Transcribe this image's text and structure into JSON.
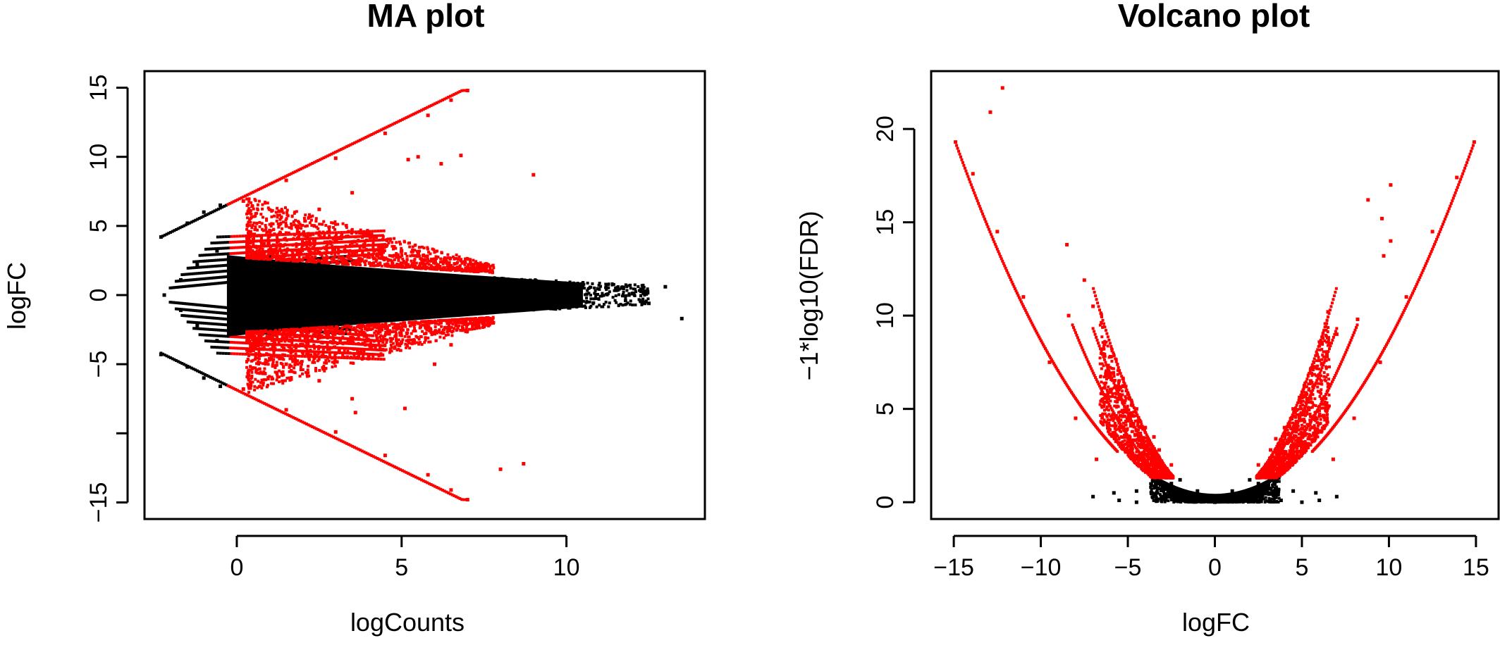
{
  "chart_data": [
    {
      "type": "scatter",
      "title": "MA plot",
      "xlabel": "logCounts",
      "ylabel": "logFC",
      "xlim": [
        -2.8,
        14.2
      ],
      "ylim": [
        -16.2,
        16.2
      ],
      "x_ticks": [
        0,
        5,
        10
      ],
      "y_ticks": [
        -15,
        -10,
        -5,
        0,
        5,
        10,
        15
      ],
      "y_tick_labels": [
        "−15",
        "",
        "−5",
        "0",
        "5",
        "10",
        "15"
      ],
      "grid": false,
      "legend": "none",
      "colors": {
        "significant": "#ff0000",
        "not_significant": "#000000"
      },
      "series": [
        {
          "values": [
            [
              0.2,
              6.8
            ],
            [
              1.5,
              8.3
            ],
            [
              3.0,
              9.9
            ],
            [
              4.5,
              11.7
            ],
            [
              5.8,
              13.0
            ],
            [
              6.5,
              14.1
            ],
            [
              7.0,
              14.8
            ],
            [
              0.2,
              -6.8
            ],
            [
              1.5,
              -8.3
            ],
            [
              3.0,
              -9.9
            ],
            [
              4.5,
              -11.6
            ],
            [
              5.8,
              -13.0
            ],
            [
              6.5,
              -14.1
            ],
            [
              7.0,
              -14.8
            ],
            [
              0.5,
              4.0
            ],
            [
              1.5,
              5.0
            ],
            [
              2.5,
              6.2
            ],
            [
              3.5,
              7.4
            ],
            [
              0.5,
              -4.0
            ],
            [
              1.5,
              -5.0
            ],
            [
              2.5,
              -6.2
            ],
            [
              3.5,
              -7.5
            ],
            [
              3.6,
              -8.5
            ],
            [
              5.2,
              9.8
            ],
            [
              5.5,
              10.0
            ],
            [
              6.8,
              10.1
            ],
            [
              9.0,
              8.7
            ],
            [
              6.2,
              9.5
            ],
            [
              8.0,
              -12.6
            ],
            [
              8.7,
              -12.2
            ],
            [
              5.1,
              -8.2
            ],
            [
              6.0,
              -5.0
            ],
            [
              6.5,
              -3.6
            ],
            [
              1.0,
              3.0
            ],
            [
              2.0,
              3.6
            ],
            [
              3.0,
              4.2
            ],
            [
              4.0,
              4.4
            ],
            [
              5.0,
              3.2
            ],
            [
              6.0,
              2.6
            ],
            [
              7.0,
              2.0
            ],
            [
              1.0,
              -3.0
            ],
            [
              2.0,
              -3.6
            ],
            [
              3.0,
              -4.2
            ],
            [
              4.0,
              -4.4
            ],
            [
              5.0,
              -3.4
            ],
            [
              6.0,
              -2.8
            ],
            [
              7.0,
              -2.1
            ]
          ]
        },
        {
          "values": [
            [
              -2.3,
              4.2
            ],
            [
              -1.5,
              5.2
            ],
            [
              -1.0,
              6.0
            ],
            [
              -0.5,
              6.5
            ],
            [
              -2.3,
              -4.3
            ],
            [
              -1.5,
              -5.2
            ],
            [
              -1.0,
              -6.0
            ],
            [
              -0.5,
              -6.6
            ],
            [
              -2.2,
              0.0
            ],
            [
              -1.7,
              1.1
            ],
            [
              -1.7,
              -1.1
            ],
            [
              -1.2,
              2.2
            ],
            [
              -1.2,
              -2.2
            ],
            [
              -0.6,
              3.2
            ],
            [
              -0.6,
              -3.3
            ],
            [
              0.5,
              1.5
            ],
            [
              0.5,
              -1.6
            ],
            [
              2.0,
              1.8
            ],
            [
              2.0,
              -1.9
            ],
            [
              4.0,
              1.7
            ],
            [
              4.0,
              -1.8
            ],
            [
              6.0,
              1.4
            ],
            [
              6.0,
              -1.5
            ],
            [
              8.0,
              1.0
            ],
            [
              8.0,
              -1.1
            ],
            [
              10.0,
              0.6
            ],
            [
              10.0,
              -0.7
            ],
            [
              11.5,
              0.4
            ],
            [
              12.5,
              -0.6
            ],
            [
              13.0,
              0.6
            ],
            [
              13.5,
              -1.7
            ],
            [
              12.0,
              0.1
            ]
          ]
        }
      ]
    },
    {
      "type": "scatter",
      "title": "Volcano plot",
      "xlabel": "logFC",
      "ylabel": "−1*log10(FDR)",
      "xlim": [
        -16.3,
        16.3
      ],
      "ylim": [
        -0.9,
        23.1
      ],
      "x_ticks": [
        -15,
        -10,
        -5,
        0,
        5,
        10,
        15
      ],
      "x_tick_labels": [
        "−15",
        "−10",
        "−5",
        "0",
        "5",
        "10",
        "15"
      ],
      "y_ticks": [
        0,
        5,
        10,
        15,
        20
      ],
      "grid": false,
      "legend": "none",
      "colors": {
        "significant": "#ff0000",
        "not_significant": "#000000"
      },
      "series": [
        {
          "values": [
            [
              -14.9,
              19.3
            ],
            [
              -13.9,
              17.6
            ],
            [
              -12.5,
              14.5
            ],
            [
              -11.0,
              11.0
            ],
            [
              -9.5,
              7.5
            ],
            [
              -8.0,
              4.5
            ],
            [
              -6.8,
              2.3
            ],
            [
              14.9,
              19.3
            ],
            [
              13.9,
              17.4
            ],
            [
              12.5,
              14.5
            ],
            [
              11.0,
              11.0
            ],
            [
              9.5,
              7.5
            ],
            [
              8.0,
              4.5
            ],
            [
              6.8,
              2.3
            ],
            [
              -12.9,
              20.9
            ],
            [
              -12.2,
              22.2
            ],
            [
              -8.5,
              13.8
            ],
            [
              -7.5,
              11.9
            ],
            [
              -8.4,
              10.0
            ],
            [
              8.8,
              16.2
            ],
            [
              10.1,
              17.0
            ],
            [
              10.1,
              14.0
            ],
            [
              9.7,
              13.2
            ],
            [
              9.6,
              15.2
            ],
            [
              8.2,
              9.8
            ],
            [
              -6.5,
              8.2
            ],
            [
              -5.5,
              6.5
            ],
            [
              -4.5,
              5.0
            ],
            [
              -3.5,
              3.5
            ],
            [
              -2.5,
              2.0
            ],
            [
              6.5,
              10.2
            ],
            [
              5.5,
              6.5
            ],
            [
              4.5,
              5.0
            ],
            [
              3.5,
              3.4
            ],
            [
              2.5,
              2.0
            ],
            [
              -7.0,
              10.5
            ],
            [
              -6.0,
              7.8
            ],
            [
              -5.0,
              5.8
            ],
            [
              -4.0,
              4.0
            ],
            [
              -3.2,
              2.8
            ],
            [
              7.0,
              9.0
            ],
            [
              6.0,
              7.6
            ],
            [
              5.0,
              5.6
            ],
            [
              4.0,
              4.0
            ],
            [
              3.2,
              2.8
            ]
          ]
        },
        {
          "values": [
            [
              -7.0,
              0.3
            ],
            [
              -5.8,
              0.5
            ],
            [
              -4.5,
              0.6
            ],
            [
              -3.0,
              0.8
            ],
            [
              -2.0,
              1.2
            ],
            [
              -1.0,
              0.6
            ],
            [
              -0.5,
              0.2
            ],
            [
              0.0,
              0.0
            ],
            [
              0.5,
              0.2
            ],
            [
              1.0,
              0.6
            ],
            [
              2.0,
              1.2
            ],
            [
              3.0,
              0.8
            ],
            [
              4.5,
              0.6
            ],
            [
              5.8,
              0.5
            ],
            [
              7.0,
              0.3
            ],
            [
              -5.5,
              0.1
            ],
            [
              -4.5,
              0.0
            ],
            [
              3.8,
              0.1
            ],
            [
              5.0,
              0.0
            ],
            [
              6.0,
              0.1
            ],
            [
              -1.5,
              0.4
            ],
            [
              1.5,
              0.4
            ],
            [
              -2.5,
              1.0
            ],
            [
              2.5,
              1.0
            ]
          ]
        }
      ]
    }
  ]
}
